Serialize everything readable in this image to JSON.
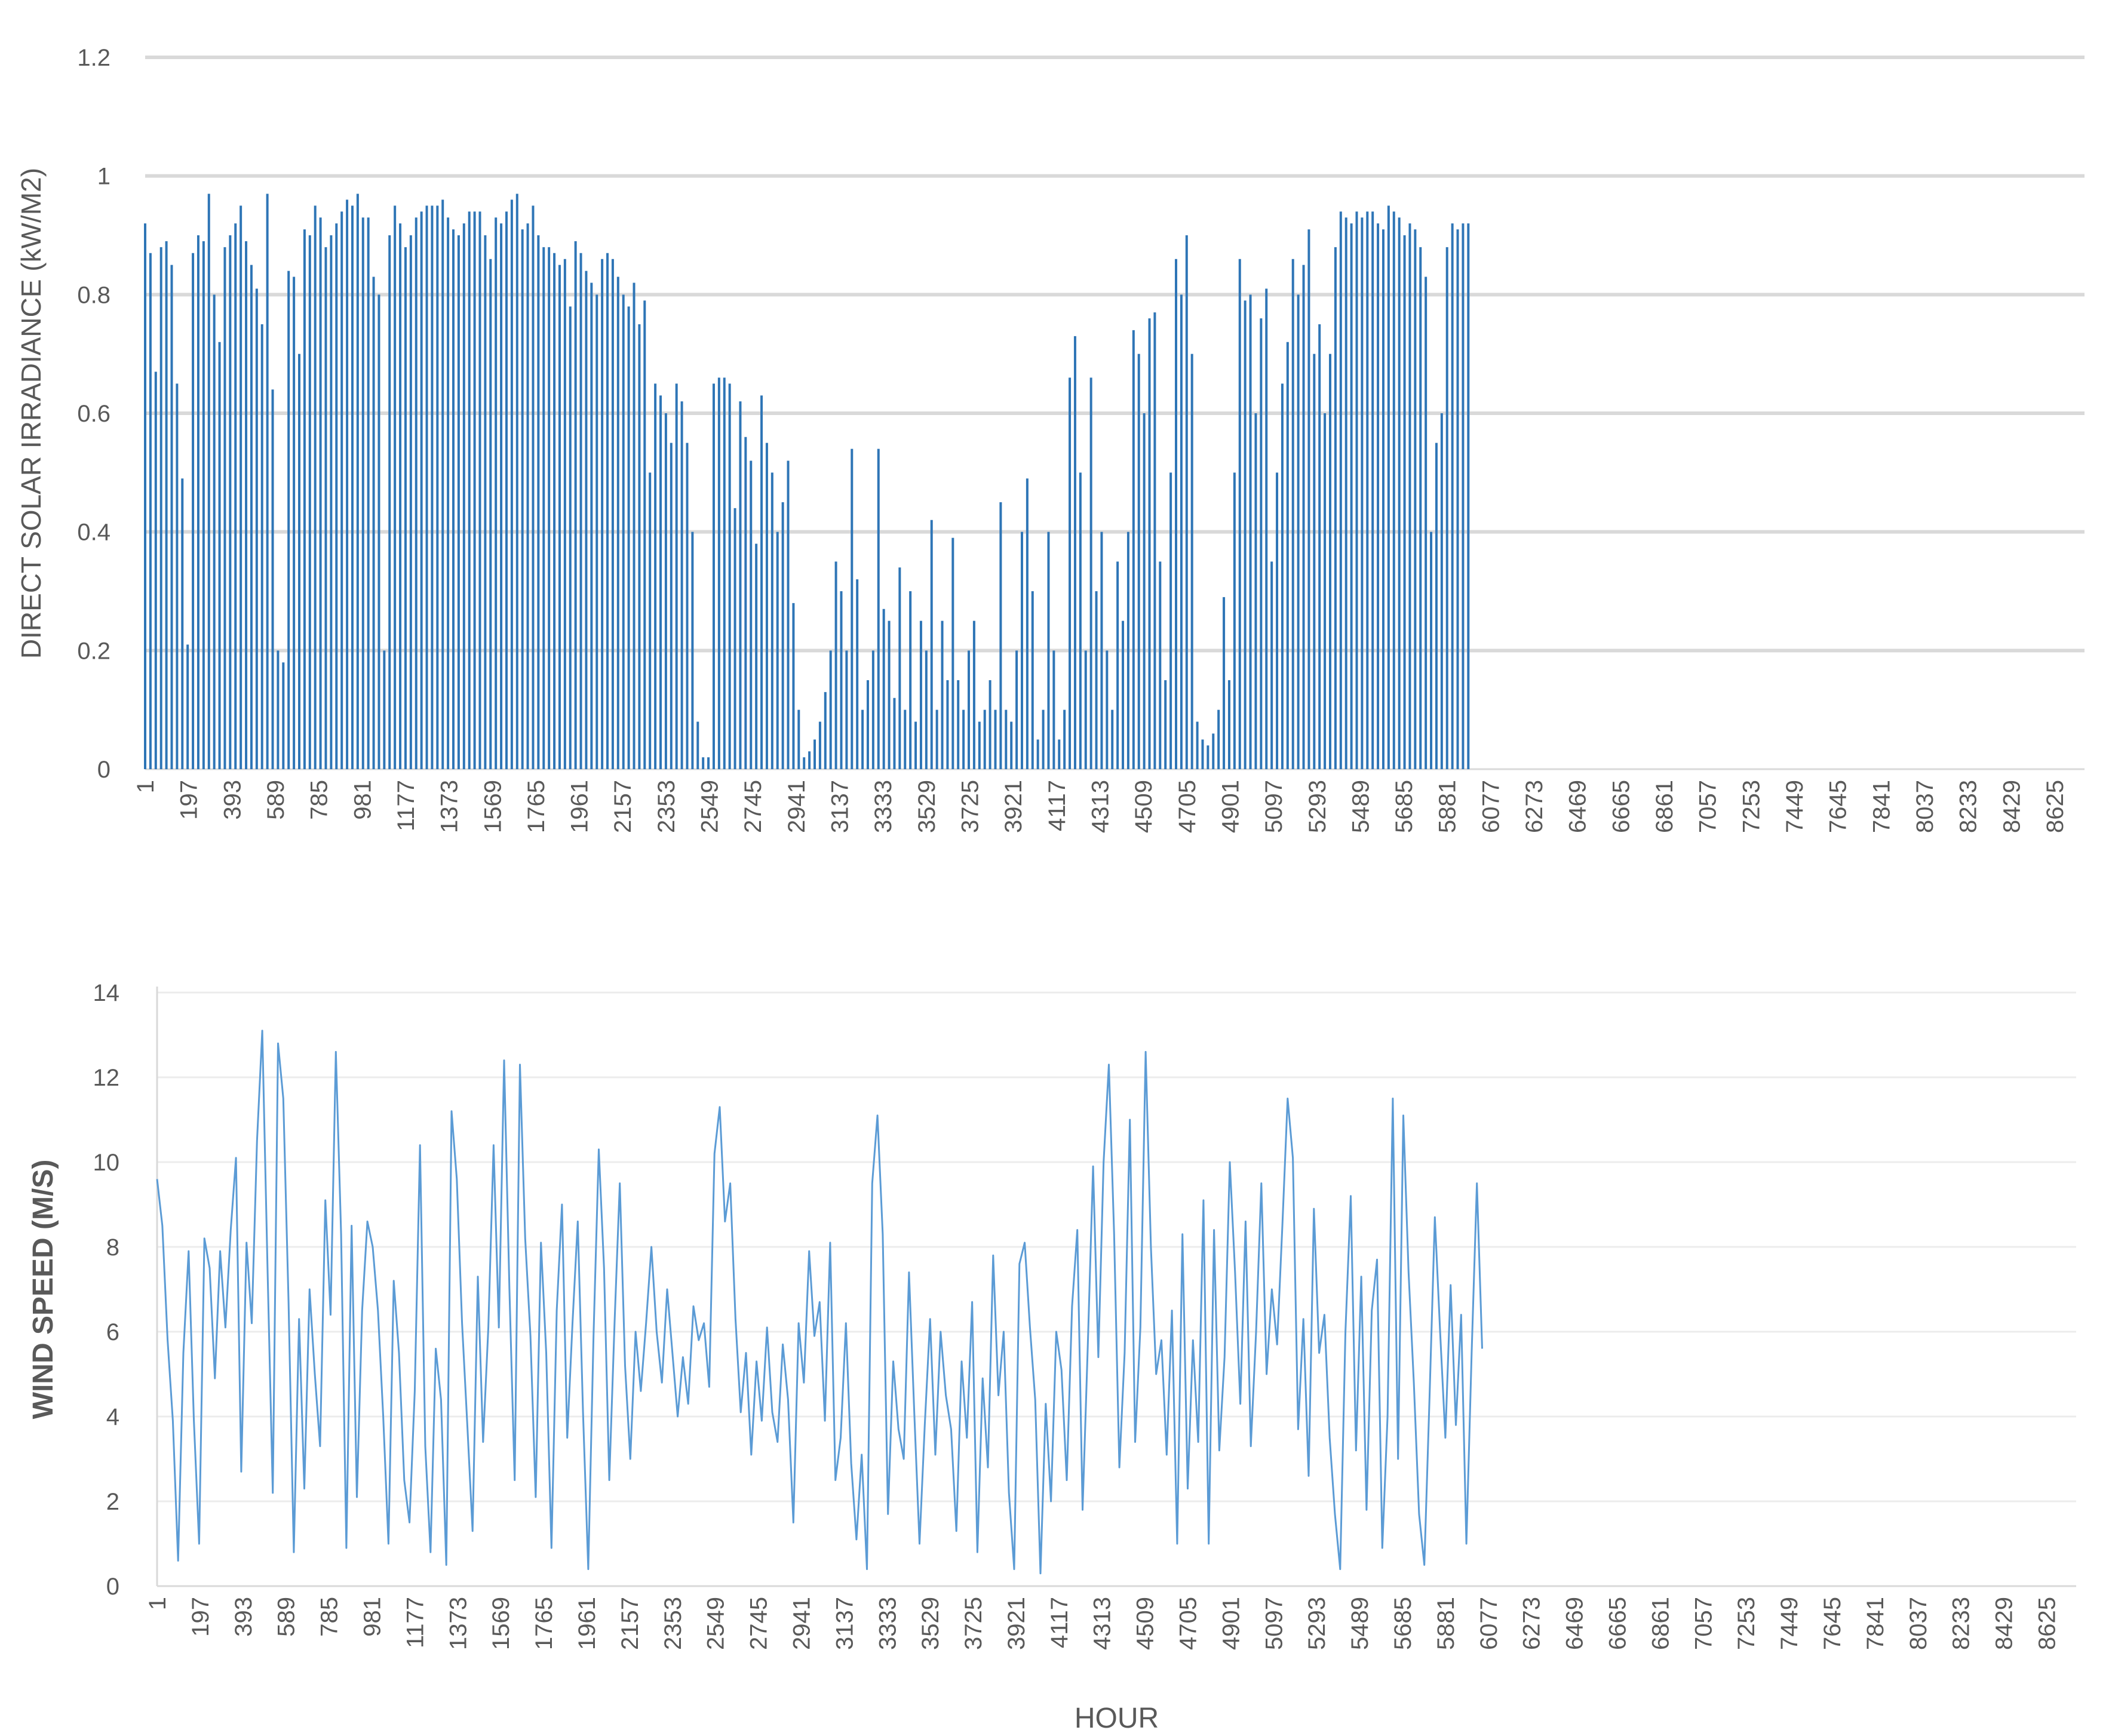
{
  "chart_data": [
    {
      "type": "bar",
      "title": "",
      "xlabel": "",
      "ylabel": "DIRECT SOLAR IRRADIANCE (kW/M2)",
      "ylim": [
        0,
        1.2
      ],
      "yticks": [
        "0",
        "0.2",
        "0.4",
        "0.6",
        "0.8",
        "1",
        "1.2"
      ],
      "xticks": [
        "1",
        "197",
        "393",
        "589",
        "785",
        "981",
        "1177",
        "1373",
        "1569",
        "1765",
        "1961",
        "2157",
        "2353",
        "2549",
        "2745",
        "2941",
        "3137",
        "3333",
        "3529",
        "3725",
        "3921",
        "4117",
        "4313",
        "4509",
        "4705",
        "4901",
        "5097",
        "5293",
        "5489",
        "5685",
        "5881",
        "6077",
        "6273",
        "6469",
        "6665",
        "6861",
        "7057",
        "7253",
        "7449",
        "7645",
        "7841",
        "8037",
        "8233",
        "8429",
        "8625"
      ],
      "grid": true,
      "color": "#2E75B6",
      "series": [
        {
          "x_start": 1,
          "x_step": 24,
          "values": [
            0.92,
            0.87,
            0.67,
            0.88,
            0.89,
            0.85,
            0.65,
            0.49,
            0.21,
            0.87,
            0.9,
            0.89,
            0.97,
            0.8,
            0.72,
            0.88,
            0.9,
            0.92,
            0.95,
            0.89,
            0.85,
            0.81,
            0.75,
            0.97,
            0.64,
            0.2,
            0.18,
            0.84,
            0.83,
            0.7,
            0.91,
            0.9,
            0.95,
            0.93,
            0.88,
            0.9,
            0.92,
            0.94,
            0.96,
            0.95,
            0.97,
            0.93,
            0.93,
            0.83,
            0.8,
            0.2,
            0.9,
            0.95,
            0.92,
            0.88,
            0.9,
            0.93,
            0.94,
            0.95,
            0.95,
            0.95,
            0.96,
            0.93,
            0.91,
            0.9,
            0.92,
            0.94,
            0.94,
            0.94,
            0.9,
            0.86,
            0.93,
            0.92,
            0.94,
            0.96,
            0.97,
            0.91,
            0.92,
            0.95,
            0.9,
            0.88,
            0.88,
            0.87,
            0.85,
            0.86,
            0.78,
            0.89,
            0.87,
            0.84,
            0.82,
            0.8,
            0.86,
            0.87,
            0.86,
            0.83,
            0.8,
            0.78,
            0.82,
            0.75,
            0.79,
            0.5,
            0.65,
            0.63,
            0.6,
            0.55,
            0.65,
            0.62,
            0.55,
            0.4,
            0.08,
            0.02,
            0.02,
            0.65,
            0.66,
            0.66,
            0.65,
            0.44,
            0.62,
            0.56,
            0.52,
            0.38,
            0.63,
            0.55,
            0.5,
            0.4,
            0.45,
            0.52,
            0.28,
            0.1,
            0.02,
            0.03,
            0.05,
            0.08,
            0.13,
            0.2,
            0.35,
            0.3,
            0.2,
            0.54,
            0.32,
            0.1,
            0.15,
            0.2,
            0.54,
            0.27,
            0.25,
            0.12,
            0.34,
            0.1,
            0.3,
            0.08,
            0.25,
            0.2,
            0.42,
            0.1,
            0.25,
            0.15,
            0.39,
            0.15,
            0.1,
            0.2,
            0.25,
            0.08,
            0.1,
            0.15,
            0.1,
            0.45,
            0.1,
            0.08,
            0.2,
            0.4,
            0.49,
            0.3,
            0.05,
            0.1,
            0.4,
            0.2,
            0.05,
            0.1,
            0.66,
            0.73,
            0.5,
            0.2,
            0.66,
            0.3,
            0.4,
            0.2,
            0.1,
            0.35,
            0.25,
            0.4,
            0.74,
            0.7,
            0.6,
            0.76,
            0.77,
            0.35,
            0.15,
            0.5,
            0.86,
            0.8,
            0.9,
            0.7,
            0.08,
            0.05,
            0.04,
            0.06,
            0.1,
            0.29,
            0.15,
            0.5,
            0.86,
            0.79,
            0.8,
            0.6,
            0.76,
            0.81,
            0.35,
            0.5,
            0.65,
            0.72,
            0.86,
            0.8,
            0.85,
            0.91,
            0.7,
            0.75,
            0.6,
            0.7,
            0.88,
            0.94,
            0.93,
            0.92,
            0.94,
            0.93,
            0.94,
            0.94,
            0.92,
            0.91,
            0.95,
            0.94,
            0.93,
            0.9,
            0.92,
            0.91,
            0.88,
            0.83,
            0.4,
            0.55,
            0.6,
            0.88,
            0.92,
            0.91,
            0.92,
            0.92
          ]
        }
      ]
    },
    {
      "type": "line",
      "title": "",
      "xlabel": "HOUR",
      "ylabel": "WIND SPEED (M/S)",
      "ylim": [
        0,
        14
      ],
      "yticks": [
        "0",
        "2",
        "4",
        "6",
        "8",
        "10",
        "12",
        "14"
      ],
      "xticks": [
        "1",
        "197",
        "393",
        "589",
        "785",
        "981",
        "1177",
        "1373",
        "1569",
        "1765",
        "1961",
        "2157",
        "2353",
        "2549",
        "2745",
        "2941",
        "3137",
        "3333",
        "3529",
        "3725",
        "3921",
        "4117",
        "4313",
        "4509",
        "4705",
        "4901",
        "5097",
        "5293",
        "5489",
        "5685",
        "5881",
        "6077",
        "6273",
        "6469",
        "6665",
        "6861",
        "7057",
        "7253",
        "7449",
        "7645",
        "7841",
        "8037",
        "8233",
        "8429",
        "8625"
      ],
      "grid": true,
      "color": "#5B9BD5",
      "series": [
        {
          "x_start": 1,
          "x_step": 24,
          "values": [
            9.6,
            8.5,
            5.8,
            3.9,
            0.6,
            5.5,
            7.9,
            3.9,
            1.0,
            8.2,
            7.5,
            4.9,
            7.9,
            6.1,
            8.4,
            10.1,
            2.7,
            8.1,
            6.2,
            10.5,
            13.1,
            7.5,
            2.2,
            12.8,
            11.5,
            6.7,
            0.8,
            6.3,
            2.3,
            7.0,
            5.0,
            3.3,
            9.1,
            6.4,
            12.6,
            8.3,
            0.9,
            8.5,
            2.1,
            6.5,
            8.6,
            8.0,
            6.5,
            4.0,
            1.0,
            7.2,
            5.5,
            2.5,
            1.5,
            4.6,
            10.4,
            3.3,
            0.8,
            5.6,
            4.4,
            0.5,
            11.2,
            9.6,
            6.2,
            3.8,
            1.3,
            7.3,
            3.4,
            6.1,
            10.4,
            6.1,
            12.4,
            7.0,
            2.5,
            12.3,
            8.2,
            5.9,
            2.1,
            8.1,
            5.5,
            0.9,
            6.5,
            9.0,
            3.5,
            6.2,
            8.6,
            4.1,
            0.4,
            5.9,
            10.3,
            7.5,
            2.5,
            6.2,
            9.5,
            5.2,
            3.0,
            6.0,
            4.6,
            6.2,
            8.0,
            6.0,
            4.8,
            7.0,
            5.5,
            4.0,
            5.4,
            4.3,
            6.6,
            5.8,
            6.2,
            4.7,
            10.2,
            11.3,
            8.6,
            9.5,
            6.3,
            4.1,
            5.5,
            3.1,
            5.3,
            3.9,
            6.1,
            4.1,
            3.4,
            5.7,
            4.4,
            1.5,
            6.2,
            4.8,
            7.9,
            5.9,
            6.7,
            3.9,
            8.1,
            2.5,
            3.5,
            6.2,
            2.9,
            1.1,
            3.1,
            0.4,
            9.5,
            11.1,
            8.3,
            1.7,
            5.3,
            3.7,
            3.0,
            7.4,
            4.1,
            1.0,
            3.8,
            6.3,
            3.1,
            6.0,
            4.5,
            3.7,
            1.3,
            5.3,
            3.5,
            6.7,
            0.8,
            4.9,
            2.8,
            7.8,
            4.5,
            6.0,
            2.2,
            0.4,
            7.6,
            8.1,
            6.1,
            4.4,
            0.3,
            4.3,
            2.0,
            6.0,
            5.1,
            2.5,
            6.6,
            8.4,
            1.8,
            5.7,
            9.9,
            5.4,
            10.0,
            12.3,
            8.3,
            2.8,
            5.5,
            11.0,
            3.4,
            6.1,
            12.6,
            8.0,
            5.0,
            5.8,
            3.1,
            6.5,
            1.0,
            8.3,
            2.3,
            5.8,
            3.4,
            9.1,
            1.0,
            8.4,
            3.2,
            5.4,
            10.0,
            7.4,
            4.3,
            8.6,
            3.3,
            6.0,
            9.5,
            5.0,
            7.0,
            5.7,
            8.5,
            11.5,
            10.1,
            3.7,
            6.3,
            2.6,
            8.9,
            5.5,
            6.4,
            3.5,
            1.7,
            0.4,
            6.0,
            9.2,
            3.2,
            7.3,
            1.8,
            6.5,
            7.7,
            0.9,
            4.0,
            11.5,
            3.0,
            11.1,
            7.4,
            4.8,
            1.7,
            0.5,
            4.5,
            8.7,
            6.0,
            3.5,
            7.1,
            3.8,
            6.4,
            1.0,
            5.5,
            9.5,
            5.6
          ]
        }
      ]
    }
  ]
}
